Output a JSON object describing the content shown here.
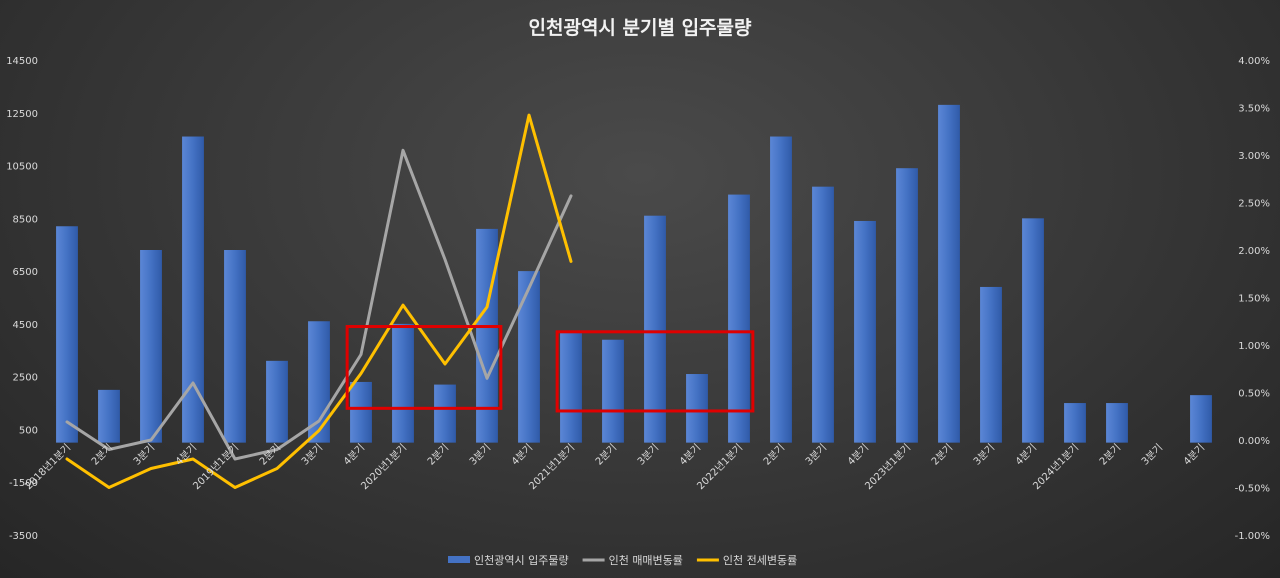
{
  "chart_data": {
    "type": "bar",
    "title": "인천광역시 분기별 입주물량",
    "categories": [
      "2018년1분기",
      "2분기",
      "3분기",
      "4분기",
      "2019년1분기",
      "2분기",
      "3분기",
      "4분기",
      "2020년1분기",
      "2분기",
      "3분기",
      "4분기",
      "2021년1분기",
      "2분기",
      "3분기",
      "4분기",
      "2022년1분기",
      "2분기",
      "3분기",
      "4분기",
      "2023년1분기",
      "2분기",
      "3분기",
      "4분기",
      "2024년1분기",
      "2분기",
      "3분기",
      "4분기"
    ],
    "y_left": {
      "min": -3500,
      "max": 14500,
      "ticks": [
        "14500",
        "12500",
        "10500",
        "8500",
        "6500",
        "4500",
        "2500",
        "500",
        "-1500",
        "-3500"
      ]
    },
    "y_right": {
      "min": -1.0,
      "max": 4.0,
      "ticks": [
        "4.00%",
        "3.50%",
        "3.00%",
        "2.50%",
        "2.00%",
        "1.50%",
        "1.00%",
        "0.50%",
        "0.00%",
        "-0.50%",
        "-1.00%"
      ]
    },
    "series": [
      {
        "name": "인천광역시 입주물량",
        "kind": "bar",
        "axis": "left",
        "color": "#4472C4",
        "values": [
          8200,
          2000,
          7300,
          11600,
          7300,
          3100,
          4600,
          2300,
          4500,
          2200,
          8100,
          6500,
          4200,
          3900,
          8600,
          2600,
          9400,
          11600,
          9700,
          8400,
          10400,
          12800,
          5900,
          8500,
          1500,
          1500,
          null,
          1800
        ]
      },
      {
        "name": "인천 매매변동률",
        "kind": "line",
        "axis": "right",
        "color": "#a6a6a6",
        "values": [
          0.19,
          -0.1,
          0.0,
          0.6,
          -0.2,
          -0.1,
          0.2,
          0.9,
          3.05,
          1.9,
          0.65,
          1.6,
          2.57,
          null,
          null,
          null,
          null,
          null,
          null,
          null,
          null,
          null,
          null,
          null,
          null,
          null,
          null,
          null
        ]
      },
      {
        "name": "인천 전세변동률",
        "kind": "line",
        "axis": "right",
        "color": "#ffc000",
        "values": [
          -0.2,
          -0.5,
          -0.3,
          -0.2,
          -0.5,
          -0.3,
          0.1,
          0.7,
          1.42,
          0.8,
          1.4,
          3.42,
          1.88,
          null,
          null,
          null,
          null,
          null,
          null,
          null,
          null,
          null,
          null,
          null,
          null,
          null,
          null,
          null
        ]
      }
    ],
    "annotations": [
      {
        "shape": "rectangle",
        "color": "#e00000",
        "from_category": 7,
        "to_category": 10,
        "y_from": 1300,
        "y_to": 4400
      },
      {
        "shape": "rectangle",
        "color": "#e00000",
        "from_category": 12,
        "to_category": 16,
        "y_from": 1200,
        "y_to": 4200
      }
    ],
    "grid": false,
    "legend": "bottom"
  }
}
